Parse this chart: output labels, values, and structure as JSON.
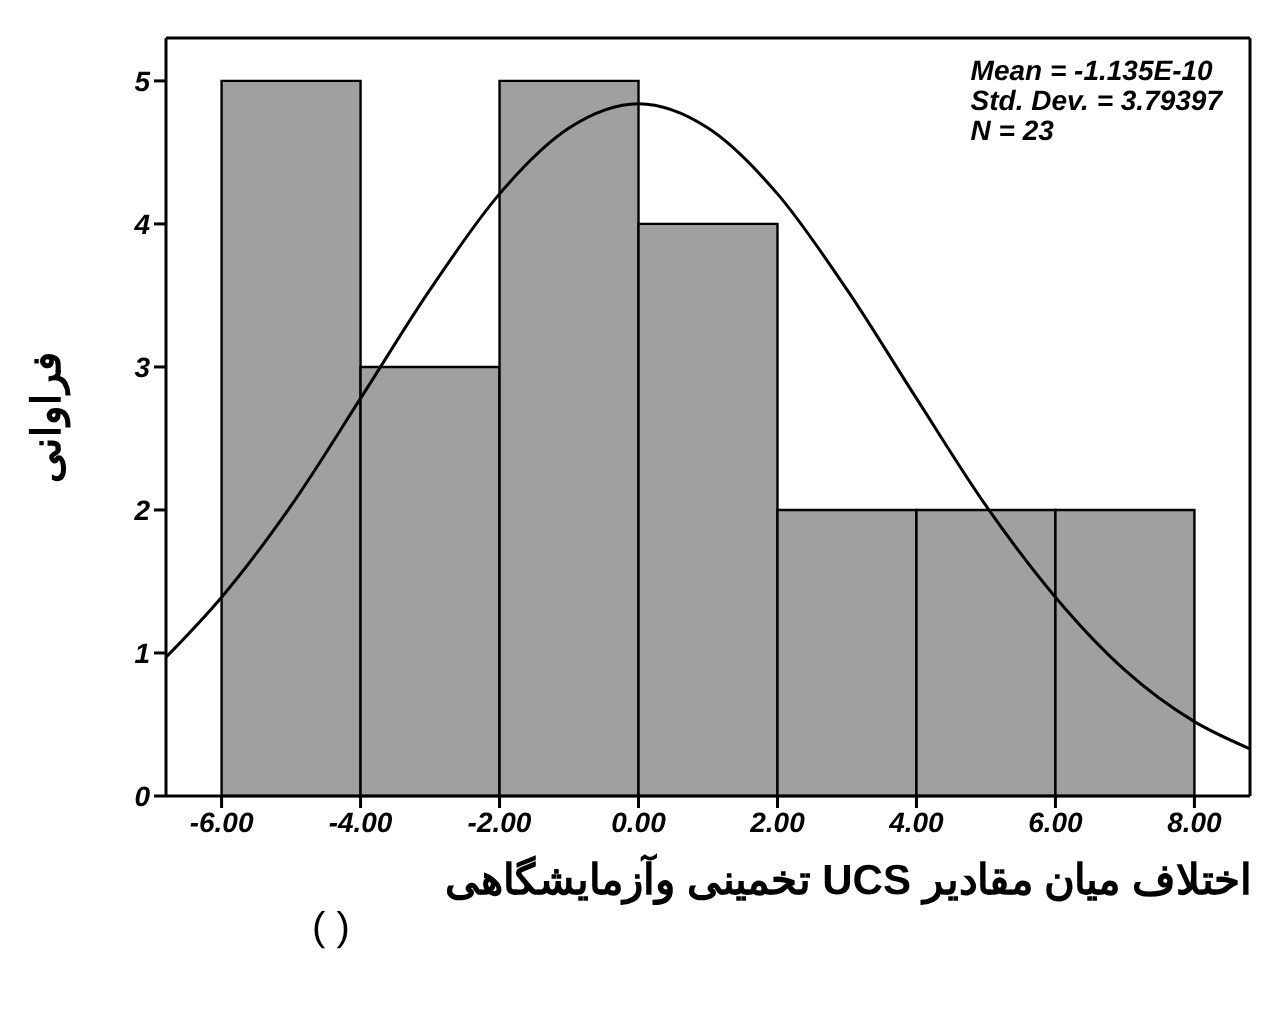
{
  "chart_data": {
    "type": "histogram",
    "xlabel": "اختلاف میان مقادیر UCS تخمینی وآزمایشگاهی",
    "ylabel": "فراوانی",
    "bins": [
      -6,
      -4,
      -2,
      0,
      2,
      4,
      6,
      8
    ],
    "values": [
      5,
      3,
      5,
      4,
      2,
      2,
      2
    ],
    "color": "#a0a0a0",
    "series": [
      {
        "type": "line",
        "color": "#000000",
        "x": [
          -6.8,
          -6,
          -5,
          -4,
          -3,
          -2,
          -1,
          0,
          1,
          2,
          3,
          4,
          5,
          6,
          7,
          8,
          8.8
        ],
        "values": [
          0.97,
          1.39,
          2.03,
          2.78,
          3.54,
          4.21,
          4.67,
          4.84,
          4.67,
          4.21,
          3.54,
          2.78,
          2.03,
          1.39,
          0.88,
          0.52,
          0.33
        ]
      }
    ],
    "xlim": [
      -6.8,
      8.8
    ],
    "xticks": [
      {
        "value": -6,
        "label": "-6.00"
      },
      {
        "value": -4,
        "label": "-4.00"
      },
      {
        "value": -2,
        "label": "-2.00"
      },
      {
        "value": 0,
        "label": "0.00"
      },
      {
        "value": 2,
        "label": "2.00"
      },
      {
        "value": 4,
        "label": "4.00"
      },
      {
        "value": 6,
        "label": "6.00"
      },
      {
        "value": 8,
        "label": "8.00"
      }
    ],
    "ylim": [
      0,
      5.3
    ],
    "yticks": [
      0,
      1,
      2,
      3,
      4,
      5
    ],
    "annotations": [
      "Mean = -1.135E-10",
      "Std. Dev. = 3.79397",
      "N = 23",
      "( )"
    ]
  }
}
